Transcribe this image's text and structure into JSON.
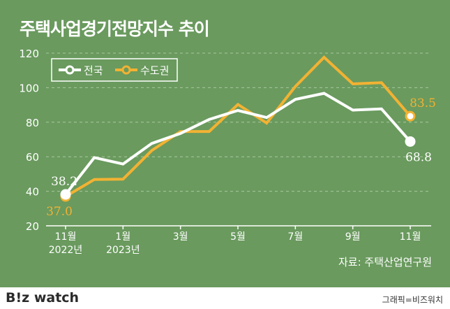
{
  "title": "주택사업경기전망지수 추이",
  "source": "자료: 주택산업연구원",
  "brand": "B!z watch",
  "credit": "그래픽=비즈워치",
  "colors": {
    "background": "#6a9a5e",
    "national": "#ffffff",
    "capital": "#f2b233",
    "grid": "#a9c79f"
  },
  "chart_data": {
    "type": "line",
    "title": "주택사업경기전망지수 추이",
    "legend_position": "top-left",
    "grid": true,
    "ylim": [
      20,
      120
    ],
    "yticks": [
      20,
      40,
      60,
      80,
      100,
      120
    ],
    "x": [
      "2022-11",
      "2022-12",
      "2023-01",
      "2023-02",
      "2023-03",
      "2023-04",
      "2023-05",
      "2023-06",
      "2023-07",
      "2023-08",
      "2023-09",
      "2023-10",
      "2023-11"
    ],
    "tick_labels": [
      {
        "index": 0,
        "month": "11월",
        "year": "2022년"
      },
      {
        "index": 2,
        "month": "1월",
        "year": "2023년"
      },
      {
        "index": 4,
        "month": "3월",
        "year": ""
      },
      {
        "index": 6,
        "month": "5월",
        "year": ""
      },
      {
        "index": 8,
        "month": "7월",
        "year": ""
      },
      {
        "index": 10,
        "month": "9월",
        "year": ""
      },
      {
        "index": 12,
        "month": "11월",
        "year": ""
      }
    ],
    "series": [
      {
        "name": "전국",
        "color": "#ffffff",
        "values": [
          38.2,
          59.5,
          55.8,
          67.7,
          73.5,
          81.6,
          86.8,
          82.7,
          93.2,
          96.7,
          87.0,
          87.7,
          68.8
        ]
      },
      {
        "name": "수도권",
        "color": "#f2b233",
        "values": [
          37.0,
          46.8,
          47.0,
          63.6,
          74.6,
          74.6,
          90.3,
          79.5,
          100.7,
          117.6,
          102.2,
          102.9,
          83.5
        ]
      }
    ],
    "data_labels": [
      {
        "series": 0,
        "index": 0,
        "text": "38.2"
      },
      {
        "series": 1,
        "index": 0,
        "text": "37.0"
      },
      {
        "series": 0,
        "index": 12,
        "text": "68.8"
      },
      {
        "series": 1,
        "index": 12,
        "text": "83.5"
      }
    ]
  }
}
